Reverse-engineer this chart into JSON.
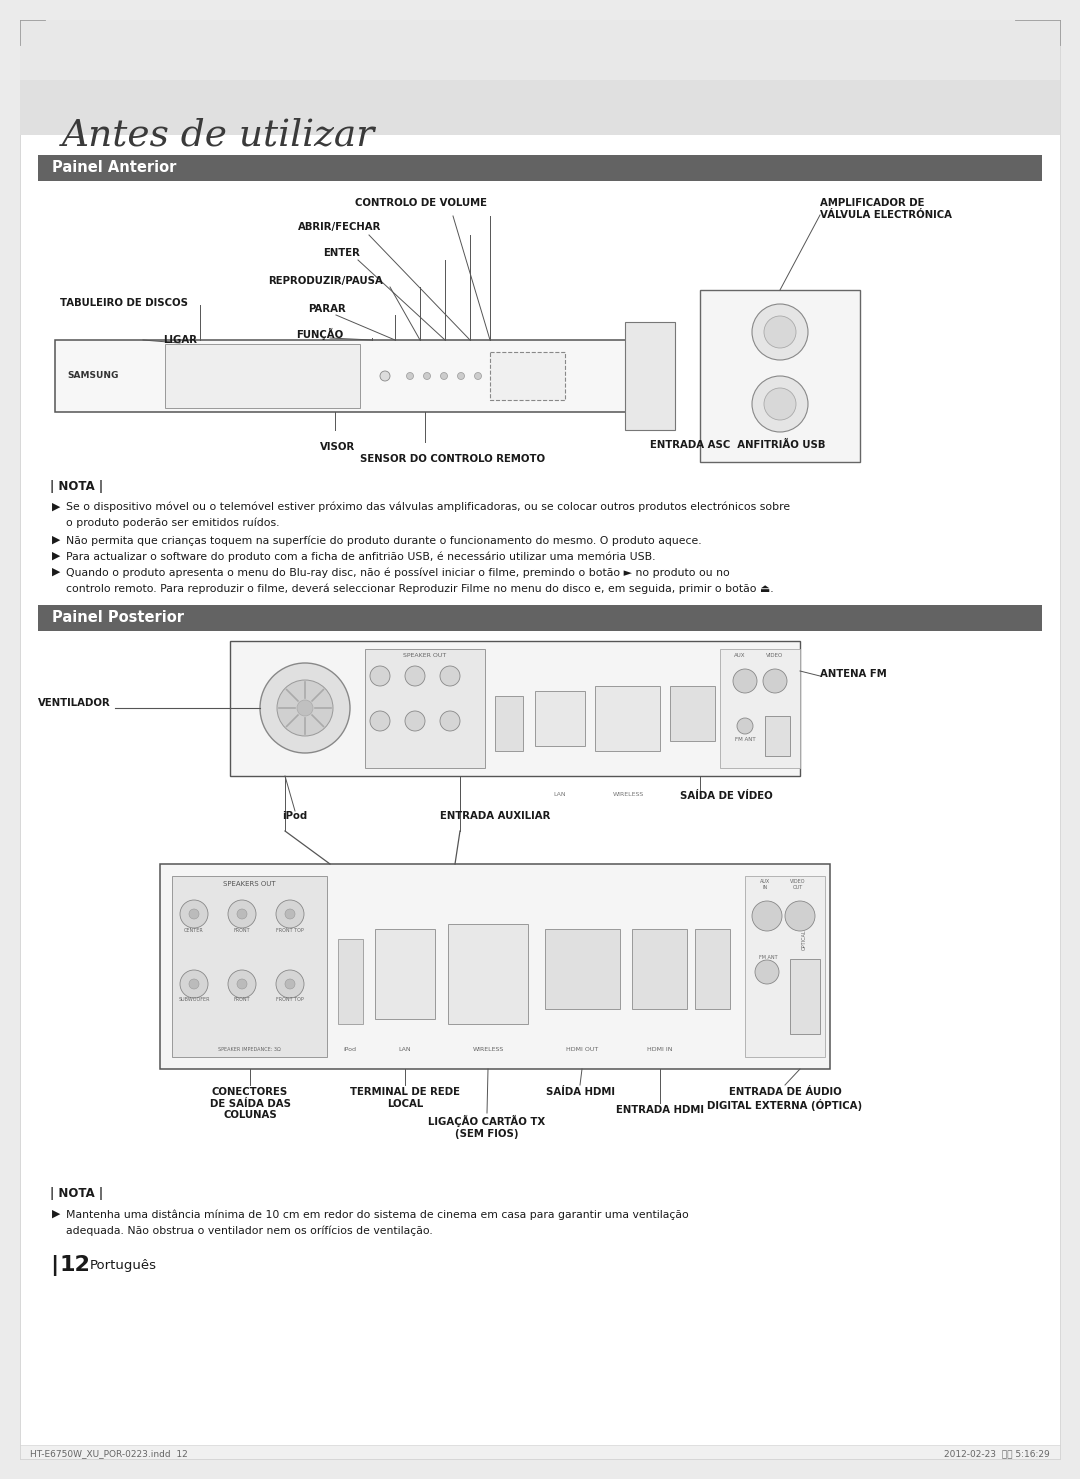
{
  "bg_color": "#ebebeb",
  "page_bg": "#ffffff",
  "title_text": "Antes de utilizar",
  "section1_title": "Painel Anterior",
  "section2_title": "Painel Posterior",
  "section_header_bg": "#636363",
  "footer_text": "HT-E6750W_XU_POR-0223.indd  12",
  "footer_right": "2012-02-23  오후 5:16:29",
  "page_number": "12",
  "page_label": "Português",
  "nota_title": "| NOTA |",
  "nota1_line1": "Se o dispositivo móvel ou o telemóvel estiver próximo das válvulas amplificadoras, ou se colocar outros produtos electrónicos sobre",
  "nota1_line2": "o produto poderão ser emitidos ruídos.",
  "nota2_line": "Não permita que crianças toquem na superfície do produto durante o funcionamento do mesmo. O produto aquece.",
  "nota3_line": "Para actualizar o software do produto com a ficha de anfitrião USB, é necessário utilizar uma memória USB.",
  "nota4_line1": "Quando o produto apresenta o menu do Blu-ray disc, não é possível iniciar o filme, premindo o botão ► no produto ou no",
  "nota4_line2": "controlo remoto. Para reproduzir o filme, deverá seleccionar Reproduzir Filme no menu do disco e, em seguida, primir o botão ⏏.",
  "nota5_title": "| NOTA |",
  "nota5_line1": "Mantenha uma distância mínima de 10 cm em redor do sistema de cinema em casa para garantir uma ventilação",
  "nota5_line2": "adequada. Não obstrua o ventilador nem os orífícios de ventilação."
}
